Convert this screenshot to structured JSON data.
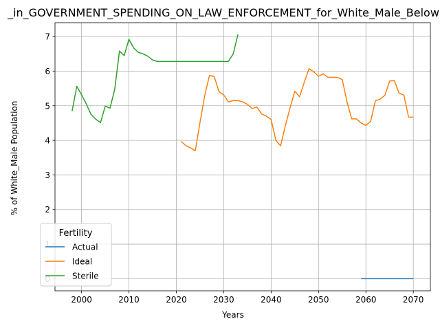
{
  "chart_data": {
    "type": "line",
    "title": "_in_GOVERNMENT_SPENDING_ON_LAW_ENFORCEMENT_for_White_Male_Below",
    "xlabel": "Years",
    "ylabel": "% of White_Male Population",
    "xlim": [
      1994.4,
      2073.6
    ],
    "ylim": [
      -0.35,
      7.4
    ],
    "xticks": [
      2000,
      2010,
      2020,
      2030,
      2040,
      2050,
      2060,
      2070
    ],
    "yticks": [
      0,
      1,
      2,
      3,
      4,
      5,
      6,
      7
    ],
    "grid": true,
    "legend": {
      "title": "Fertility",
      "position": "lower-left"
    },
    "series": [
      {
        "name": "Actual",
        "color": "#1f77b4",
        "x": [
          2059,
          2060,
          2061,
          2062,
          2063,
          2064,
          2065,
          2066,
          2067,
          2068,
          2069,
          2070
        ],
        "y": [
          0,
          0,
          0,
          0,
          0,
          0,
          0,
          0,
          0,
          0,
          0,
          0
        ]
      },
      {
        "name": "Ideal",
        "color": "#ff7f0e",
        "x": [
          2021,
          2022,
          2023,
          2024,
          2025,
          2026,
          2027,
          2028,
          2029,
          2030,
          2031,
          2032,
          2033,
          2034,
          2035,
          2036,
          2037,
          2038,
          2039,
          2040,
          2041,
          2042,
          2043,
          2044,
          2045,
          2046,
          2047,
          2048,
          2049,
          2050,
          2051,
          2052,
          2053,
          2054,
          2055,
          2056,
          2057,
          2058,
          2059,
          2060,
          2061,
          2062,
          2063,
          2064,
          2065,
          2066,
          2067,
          2068,
          2069,
          2070
        ],
        "y": [
          3.97,
          3.85,
          3.78,
          3.7,
          4.52,
          5.3,
          5.88,
          5.84,
          5.41,
          5.31,
          5.11,
          5.15,
          5.15,
          5.11,
          5.04,
          4.92,
          4.96,
          4.76,
          4.7,
          4.6,
          4.0,
          3.84,
          4.42,
          4.94,
          5.42,
          5.26,
          5.68,
          6.07,
          5.98,
          5.85,
          5.92,
          5.82,
          5.82,
          5.82,
          5.76,
          5.12,
          4.62,
          4.62,
          4.5,
          4.43,
          4.55,
          5.14,
          5.19,
          5.3,
          5.71,
          5.73,
          5.36,
          5.31,
          4.67,
          4.67
        ]
      },
      {
        "name": "Sterile",
        "color": "#2ca02c",
        "x": [
          1998,
          1999,
          2000,
          2001,
          2002,
          2003,
          2004,
          2005,
          2006,
          2007,
          2008,
          2009,
          2010,
          2011,
          2012,
          2013,
          2014,
          2015,
          2016,
          2017,
          2018,
          2019,
          2020,
          2021,
          2022,
          2023,
          2024,
          2025,
          2026,
          2027,
          2028,
          2029,
          2030,
          2031,
          2032,
          2033
        ],
        "y": [
          4.84,
          5.56,
          5.32,
          5.05,
          4.75,
          4.61,
          4.51,
          4.99,
          4.93,
          5.47,
          6.58,
          6.45,
          6.92,
          6.67,
          6.54,
          6.5,
          6.43,
          6.32,
          6.28,
          6.28,
          6.28,
          6.28,
          6.28,
          6.28,
          6.28,
          6.28,
          6.28,
          6.28,
          6.28,
          6.28,
          6.28,
          6.28,
          6.28,
          6.28,
          6.5,
          7.06
        ]
      }
    ]
  }
}
